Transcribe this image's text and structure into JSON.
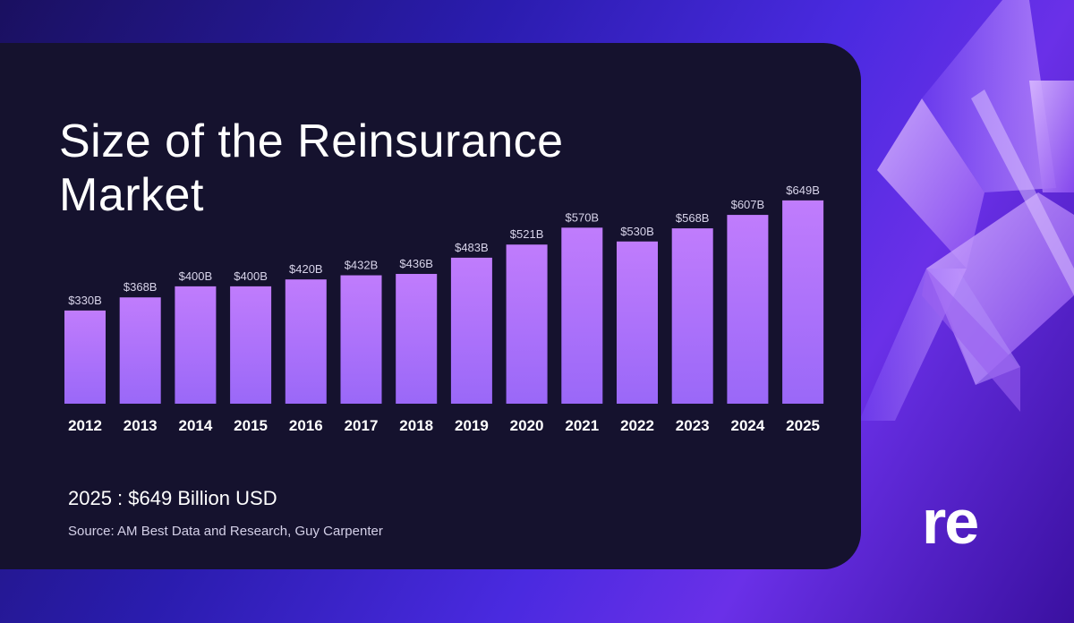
{
  "chart_data": {
    "type": "bar",
    "title": "Size of the Reinsurance Market",
    "categories": [
      "2012",
      "2013",
      "2014",
      "2015",
      "2016",
      "2017",
      "2018",
      "2019",
      "2020",
      "2021",
      "2022",
      "2023",
      "2024",
      "2025"
    ],
    "values": [
      330,
      368,
      400,
      400,
      420,
      432,
      436,
      483,
      521,
      570,
      530,
      568,
      607,
      649
    ],
    "data_labels": [
      "$330B",
      "$368B",
      "$400B",
      "$400B",
      "$420B",
      "$432B",
      "$436B",
      "$483B",
      "$521B",
      "$570B",
      "$530B",
      "$568B",
      "$607B",
      "$649B"
    ],
    "unit": "Billion USD",
    "xlabel": "",
    "ylabel": "",
    "grid": false,
    "bar_color_top": "#c07cfc",
    "bar_color_bottom": "#9a68f8"
  },
  "summary": "2025 : $649 Billion USD",
  "source": "Source: AM Best Data and Research, Guy Carpenter",
  "logo": "re"
}
